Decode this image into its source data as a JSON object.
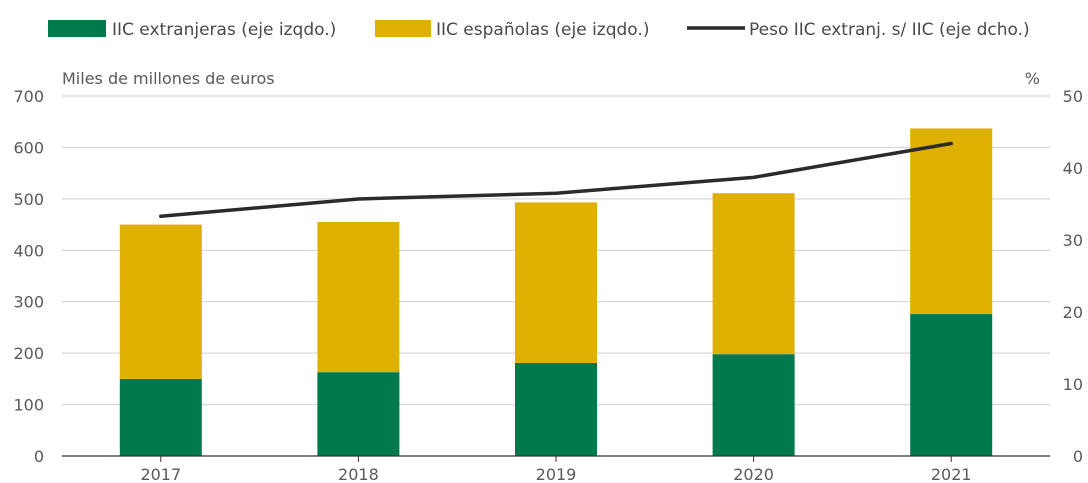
{
  "chart_data": {
    "type": "bar",
    "stacked": true,
    "categories": [
      "2017",
      "2018",
      "2019",
      "2020",
      "2021"
    ],
    "series": [
      {
        "name": "IIC extranjeras (eje izqdo.)",
        "type": "bar",
        "axis": "left",
        "color": "#007a4d",
        "values": [
          150,
          163,
          181,
          198,
          276
        ]
      },
      {
        "name": "IIC españolas (eje izqdo.)",
        "type": "bar",
        "axis": "left",
        "color": "#deb000",
        "values": [
          300,
          292,
          312,
          313,
          361
        ]
      },
      {
        "name": "Peso IIC extranj. s/ IIC  (eje dcho.)",
        "type": "line",
        "axis": "right",
        "color": "#2b2b2b",
        "values": [
          33.3,
          35.7,
          36.5,
          38.7,
          43.4
        ]
      }
    ],
    "ylabel_left": "Miles de millones de euros",
    "ylabel_right": "%",
    "ylim_left": [
      0,
      700
    ],
    "yticks_left": [
      0,
      100,
      200,
      300,
      400,
      500,
      600,
      700
    ],
    "ylim_right": [
      0,
      50
    ],
    "yticks_right": [
      0,
      10,
      20,
      30,
      40,
      50
    ],
    "grid": true,
    "legend_position": "top"
  }
}
